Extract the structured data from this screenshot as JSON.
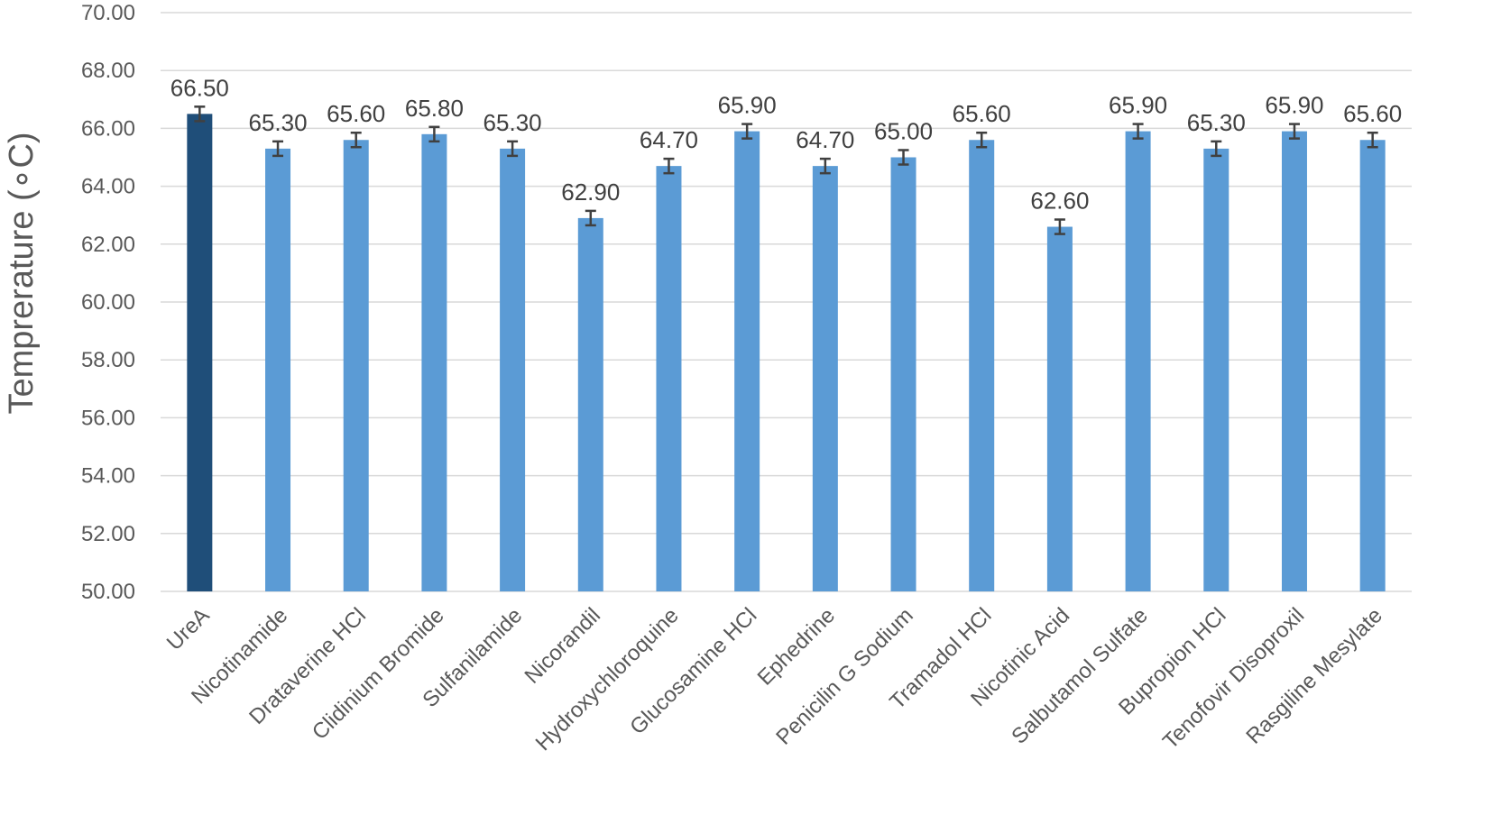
{
  "chart_data": {
    "type": "bar",
    "ylabel": "Temprerature (∘C)",
    "xlabel": "",
    "ylim": [
      50,
      70
    ],
    "y_ticks": [
      "50.00",
      "52.00",
      "54.00",
      "56.00",
      "58.00",
      "60.00",
      "62.00",
      "64.00",
      "66.00",
      "68.00",
      "70.00"
    ],
    "grid": true,
    "error_bar_half_width": 0.25,
    "categories": [
      "UreA",
      "Nicotinamide",
      "Drataverine HCl",
      "Clidinium Bromide",
      "Sulfanilamide",
      "Nicorandil",
      "Hydroxychloroquine",
      "Glucosamine HCl",
      "Ephedrine",
      "Penicilin G Sodium",
      "Tramadol HCl",
      "Nicotinic Acid",
      "Salbutamol Sulfate",
      "Bupropion HCl",
      "Tenofovir Disoproxil",
      "Rasgiline Mesylate"
    ],
    "values": [
      66.5,
      65.3,
      65.6,
      65.8,
      65.3,
      62.9,
      64.7,
      65.9,
      64.7,
      65.0,
      65.6,
      62.6,
      65.9,
      65.3,
      65.9,
      65.6
    ],
    "data_labels": [
      "66.50",
      "65.30",
      "65.60",
      "65.80",
      "65.30",
      "62.90",
      "64.70",
      "65.90",
      "64.70",
      "65.00",
      "65.60",
      "62.60",
      "65.90",
      "65.30",
      "65.90",
      "65.60"
    ],
    "colors": {
      "highlight": "#1f4e79",
      "bar": "#5b9bd5"
    },
    "highlight_index": 0
  }
}
